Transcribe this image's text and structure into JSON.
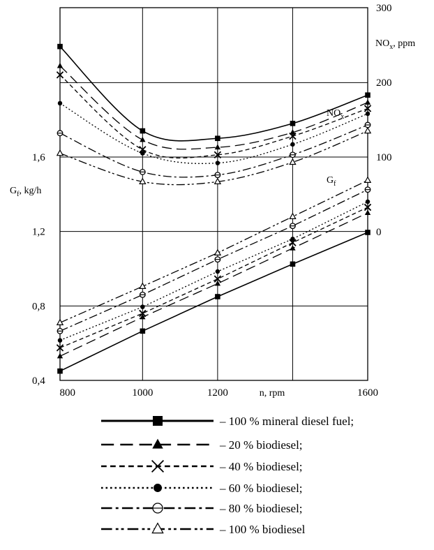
{
  "chart_data": {
    "type": "line",
    "x": [
      780,
      1000,
      1200,
      1400,
      1600
    ],
    "xlabel": "n, rpm",
    "x_tick_labels": [
      "800",
      "1000",
      "1200",
      "1600"
    ],
    "xlim": [
      780,
      1600
    ],
    "y_left": {
      "label": "G_f, kg/h",
      "ylim": [
        0.4,
        1.6
      ],
      "tick_labels": [
        "0,4",
        "0,8",
        "1,2",
        "1,6"
      ]
    },
    "y_right": {
      "label": "NO_x, ppm",
      "ylim": [
        0,
        300
      ],
      "tick_labels": [
        "0",
        "100",
        "200",
        "300"
      ]
    },
    "annotations": {
      "nox": "NO_x",
      "gf": "G_f"
    },
    "grid": true,
    "legend_position": "bottom",
    "series": [
      {
        "name": "– 100 % mineral diesel fuel;",
        "style": "solid",
        "marker": "square",
        "nox": [
          248,
          135,
          125,
          145,
          183
        ],
        "gf": [
          0.45,
          0.665,
          0.85,
          1.025,
          1.195
        ]
      },
      {
        "name": "– 20 % biodiesel;",
        "style": "dashed",
        "marker": "triangle-filled",
        "nox": [
          222,
          123,
          113,
          133,
          173
        ],
        "gf": [
          0.53,
          0.74,
          0.92,
          1.11,
          1.3
        ]
      },
      {
        "name": "– 40 % biodiesel;",
        "style": "short-dashed",
        "marker": "x",
        "nox": [
          210,
          110,
          103,
          128,
          165
        ],
        "gf": [
          0.575,
          0.76,
          0.945,
          1.14,
          1.33
        ]
      },
      {
        "name": "– 60 % biodiesel;",
        "style": "dotted",
        "marker": "circle-filled",
        "nox": [
          172,
          105,
          92,
          117,
          158
        ],
        "gf": [
          0.615,
          0.795,
          0.985,
          1.16,
          1.36
        ]
      },
      {
        "name": "– 80 % biodiesel;",
        "style": "dash-dot",
        "marker": "circle-open",
        "nox": [
          132,
          80,
          76,
          103,
          143
        ],
        "gf": [
          0.665,
          0.86,
          1.05,
          1.23,
          1.425
        ]
      },
      {
        "name": "– 100 % biodiesel",
        "style": "dash-dot-dot",
        "marker": "triangle-open",
        "nox": [
          105,
          67,
          67,
          93,
          135
        ],
        "gf": [
          0.71,
          0.905,
          1.085,
          1.28,
          1.475
        ]
      }
    ]
  }
}
